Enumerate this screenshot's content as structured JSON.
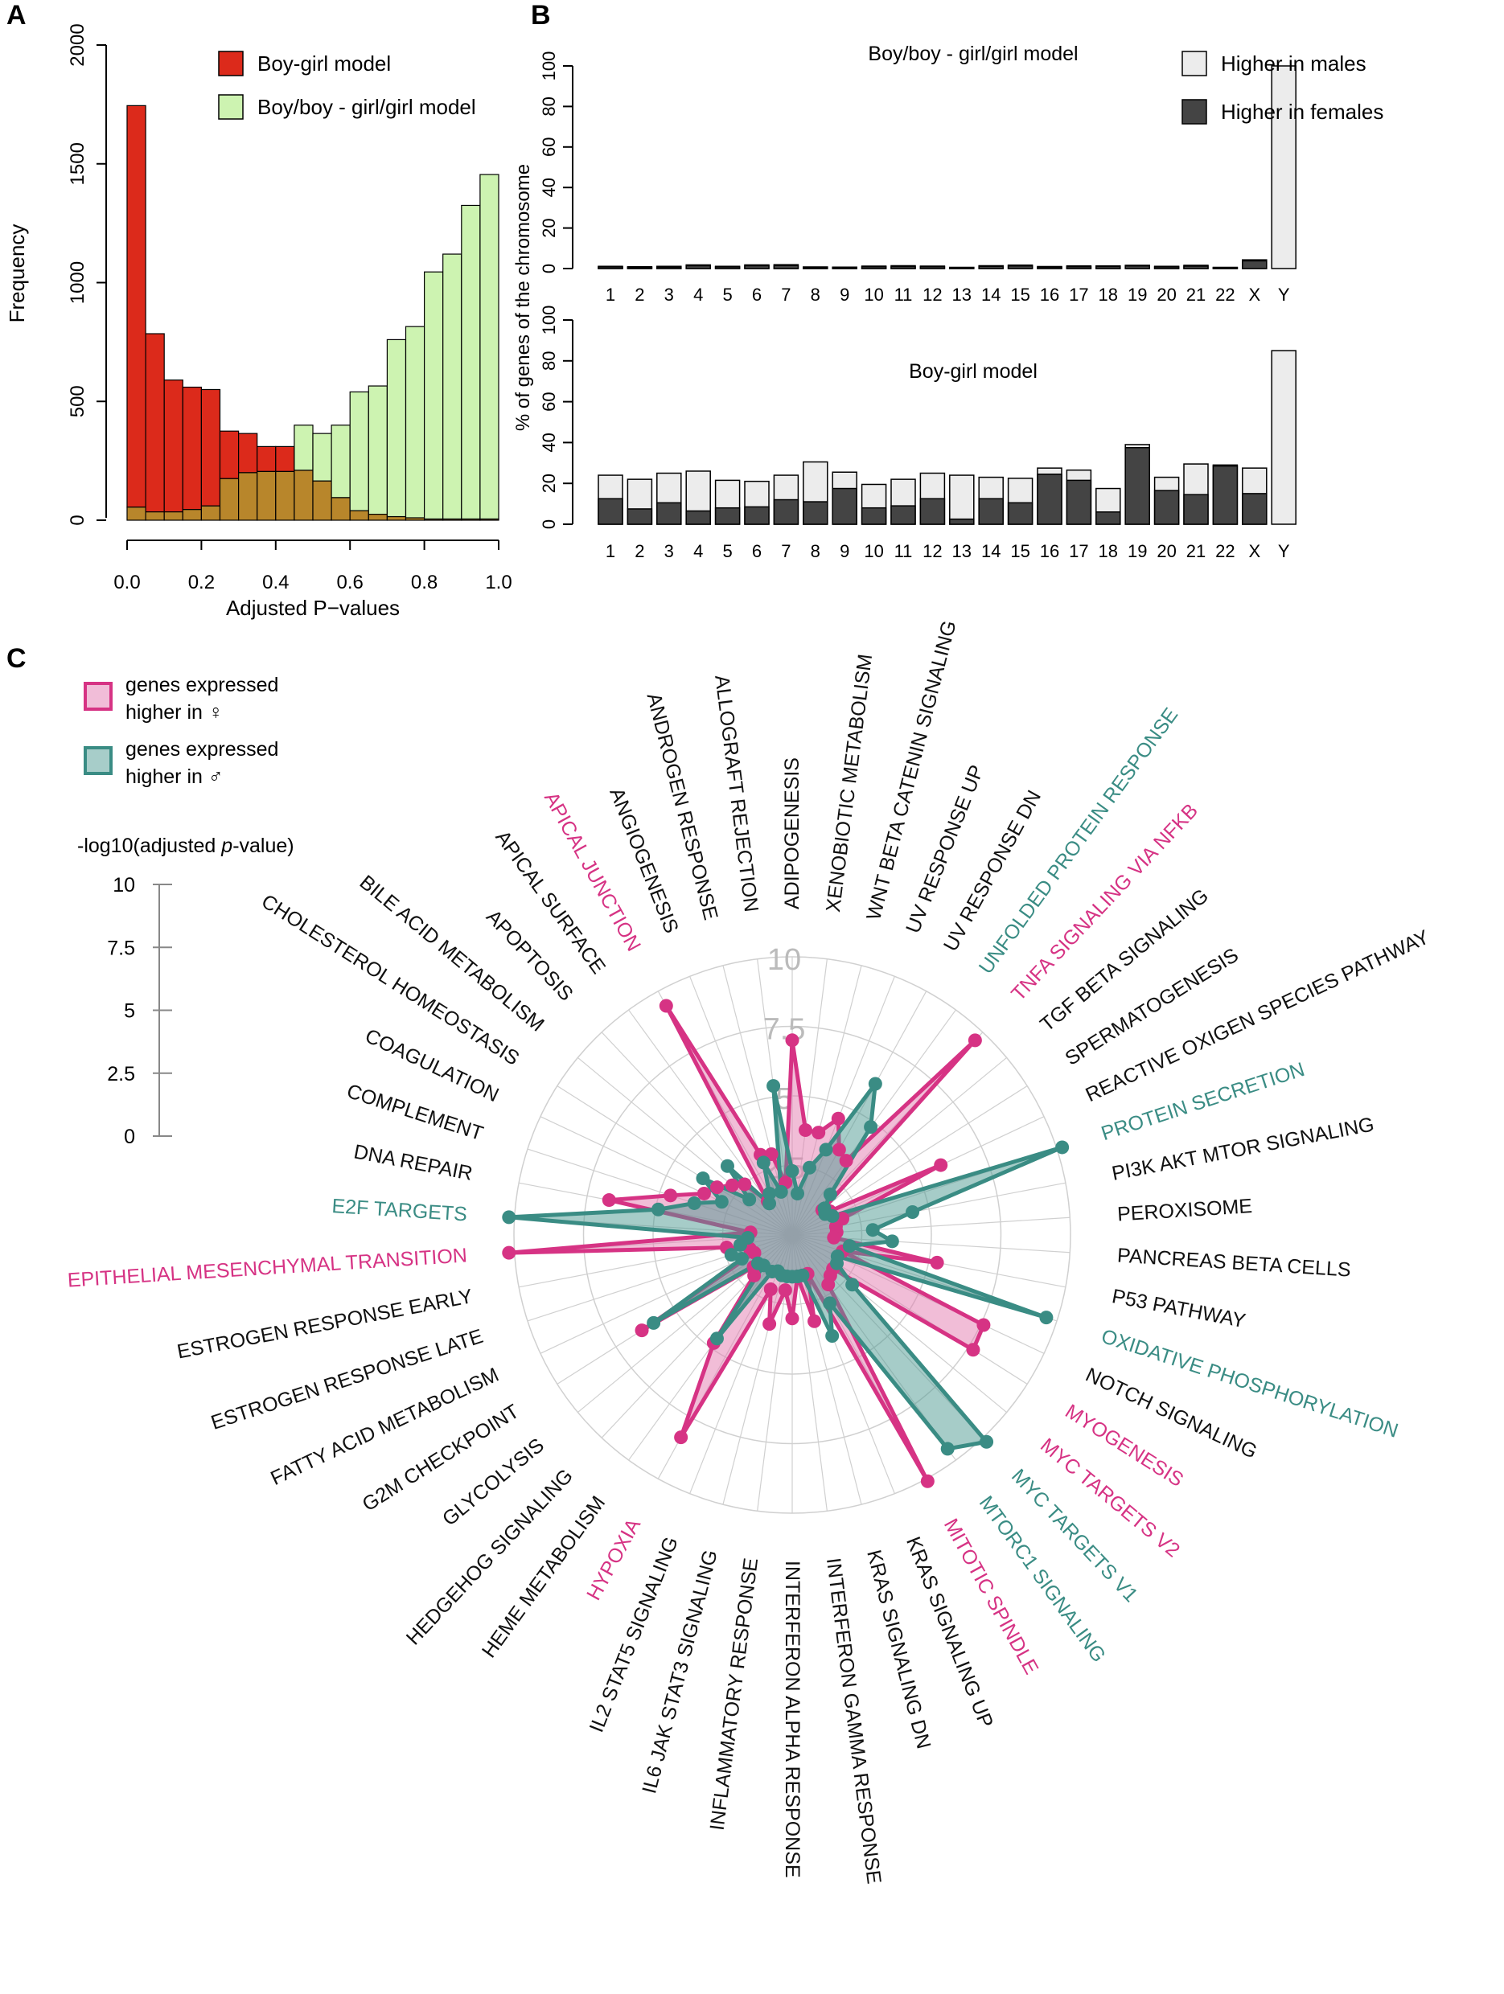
{
  "panels": {
    "a": "A",
    "b": "B",
    "c": "C"
  },
  "colors": {
    "red": "#dc2a1b",
    "green": "#cdf3b1",
    "olive": "#b8862b",
    "male": "#ececec",
    "female": "#444444",
    "pink": "#d63384",
    "teal": "#3a8c84",
    "pink_fill": "#e37bb0",
    "teal_fill": "#4e9a92",
    "grid": "#d0d0d0",
    "radial_tick": "#bbbbbb"
  },
  "chart_data": [
    {
      "type": "bar",
      "id": "hist",
      "xlabel": "Adjusted P−values",
      "ylabel": "Frequency",
      "xlim": [
        0,
        1
      ],
      "ylim": [
        0,
        2000
      ],
      "xticks": [
        "0.0",
        "0.2",
        "0.4",
        "0.6",
        "0.8",
        "1.0"
      ],
      "yticks": [
        "0",
        "500",
        "1000",
        "1500",
        "2000"
      ],
      "bin_width": 0.05,
      "legend_position": "top-right",
      "series": [
        {
          "name": "Boy-girl model",
          "color_key": "red",
          "values": [
            1745,
            785,
            590,
            560,
            550,
            375,
            365,
            310,
            310,
            210,
            165,
            95,
            40,
            25,
            15,
            10,
            5,
            5,
            5,
            5
          ]
        },
        {
          "name": "Boy/boy - girl/girl model",
          "color_key": "green",
          "values": [
            55,
            35,
            35,
            45,
            60,
            175,
            200,
            205,
            205,
            400,
            365,
            400,
            540,
            565,
            760,
            815,
            1045,
            1120,
            1325,
            1455
          ]
        }
      ]
    },
    {
      "type": "bar",
      "id": "chrom_top",
      "title": "Boy/boy - girl/girl model",
      "ylabel": "% of genes of the chromosome",
      "ylim": [
        0,
        100
      ],
      "yticks": [
        "0",
        "20",
        "40",
        "60",
        "80",
        "100"
      ],
      "categories": [
        "1",
        "2",
        "3",
        "4",
        "5",
        "6",
        "7",
        "8",
        "9",
        "10",
        "11",
        "12",
        "13",
        "14",
        "15",
        "16",
        "17",
        "18",
        "19",
        "20",
        "21",
        "22",
        "X",
        "Y"
      ],
      "legend_position": "top-right",
      "series": [
        {
          "name": "Higher in males",
          "color_key": "male",
          "values": [
            0.3,
            0.3,
            0.4,
            0.4,
            0.3,
            0.4,
            0.4,
            0.2,
            0.2,
            0.3,
            0.4,
            0.3,
            0.2,
            0.3,
            0.4,
            0.3,
            0.4,
            0.3,
            0.3,
            0.3,
            0.4,
            0.2,
            0.5,
            100
          ]
        },
        {
          "name": "Higher in females",
          "color_key": "female",
          "values": [
            0.8,
            0.6,
            0.7,
            1.4,
            0.8,
            1.4,
            1.5,
            0.6,
            0.5,
            0.9,
            1.0,
            0.9,
            0.4,
            1.1,
            1.3,
            0.7,
            0.9,
            1.0,
            1.3,
            0.8,
            1.2,
            0.4,
            3.8,
            0
          ]
        }
      ]
    },
    {
      "type": "bar",
      "id": "chrom_bottom",
      "title": "Boy-girl model",
      "ylim": [
        0,
        100
      ],
      "yticks": [
        "0",
        "20",
        "40",
        "60",
        "80",
        "100"
      ],
      "categories": [
        "1",
        "2",
        "3",
        "4",
        "5",
        "6",
        "7",
        "8",
        "9",
        "10",
        "11",
        "12",
        "13",
        "14",
        "15",
        "16",
        "17",
        "18",
        "19",
        "20",
        "21",
        "22",
        "X",
        "Y"
      ],
      "series": [
        {
          "name": "Higher in males",
          "color_key": "male",
          "values": [
            11.5,
            14.5,
            14.5,
            19.5,
            13.5,
            12.5,
            12.0,
            19.5,
            8.0,
            11.5,
            13.0,
            12.5,
            21.5,
            10.5,
            12.0,
            3.0,
            5.0,
            11.5,
            1.5,
            6.5,
            15.0,
            0.5,
            12.5,
            85
          ]
        },
        {
          "name": "Higher in females",
          "color_key": "female",
          "values": [
            12.5,
            7.5,
            10.5,
            6.5,
            8.0,
            8.5,
            12.0,
            11.0,
            17.5,
            8.0,
            9.0,
            12.5,
            2.5,
            12.5,
            10.5,
            24.5,
            21.5,
            6.0,
            37.5,
            16.5,
            14.5,
            28.5,
            15.0,
            0
          ]
        }
      ]
    },
    {
      "type": "radar",
      "id": "radar",
      "rlim": [
        0,
        10
      ],
      "ring_labels": [
        "2.5",
        "5",
        "7.5",
        "10"
      ],
      "scale_title_prefix": "-log10(adjusted ",
      "scale_title_italic": "p",
      "scale_title_suffix": "-value)",
      "scale_ticks": [
        "0",
        "2.5",
        "5",
        "7.5",
        "10"
      ],
      "legend": [
        {
          "line1": "genes expressed",
          "line2": "higher in ♀",
          "color_key": "pink",
          "fill_key": "pink_fill"
        },
        {
          "line1": "genes expressed",
          "line2": "higher in ♂",
          "color_key": "teal",
          "fill_key": "teal_fill"
        }
      ],
      "categories": [
        {
          "name": "ADIPOGENESIS",
          "female": 7.0,
          "male": 2.3,
          "color": "black"
        },
        {
          "name": "XENOBIOTIC METABOLISM",
          "female": 3.8,
          "male": 1.5,
          "color": "black"
        },
        {
          "name": "WNT BETA CATENIN SIGNALING",
          "female": 3.8,
          "male": 2.5,
          "color": "black"
        },
        {
          "name": "UV RESPONSE UP",
          "female": 4.5,
          "male": 3.3,
          "color": "black"
        },
        {
          "name": "UV RESPONSE DN",
          "female": 3.5,
          "male": 6.2,
          "color": "black"
        },
        {
          "name": "UNFOLDED PROTEIN RESPONSE",
          "female": 3.3,
          "male": 4.8,
          "color": "teal"
        },
        {
          "name": "TNFA SIGNALING VIA NFKB",
          "female": 9.6,
          "male": 2.0,
          "color": "pink"
        },
        {
          "name": "TGF BETA SIGNALING",
          "female": 1.4,
          "male": 1.5,
          "color": "black"
        },
        {
          "name": "SPERMATOGENESIS",
          "female": 1.6,
          "male": 1.4,
          "color": "black"
        },
        {
          "name": "REACTIVE OXIGEN SPECIES PATHWAY",
          "female": 5.9,
          "male": 1.6,
          "color": "black"
        },
        {
          "name": "PROTEIN SECRETION",
          "female": 1.9,
          "male": 10.2,
          "color": "teal"
        },
        {
          "name": "PI3K AKT MTOR SIGNALING",
          "female": 1.6,
          "male": 4.4,
          "color": "black"
        },
        {
          "name": "PEROXISOME",
          "female": 1.6,
          "male": 2.9,
          "color": "black"
        },
        {
          "name": "PANCREAS BETA CELLS",
          "female": 1.5,
          "male": 3.6,
          "color": "black"
        },
        {
          "name": "P53 PATHWAY",
          "female": 5.3,
          "male": 2.1,
          "color": "black"
        },
        {
          "name": "OXIDATIVE PHOSPHORYLATION",
          "female": 1.9,
          "male": 9.6,
          "color": "teal"
        },
        {
          "name": "NOTCH SIGNALING",
          "female": 7.6,
          "male": 1.8,
          "color": "black"
        },
        {
          "name": "MYOGENESIS",
          "female": 7.7,
          "male": 1.9,
          "color": "pink"
        },
        {
          "name": "MYC TARGETS V2",
          "female": 1.9,
          "male": 2.8,
          "color": "pink"
        },
        {
          "name": "MYC TARGETS V1",
          "female": 2.0,
          "male": 10.2,
          "color": "teal"
        },
        {
          "name": "MTORC1 SIGNALING",
          "female": 2.2,
          "male": 9.5,
          "color": "teal"
        },
        {
          "name": "MITOTIC SPINDLE",
          "female": 10.1,
          "male": 2.8,
          "color": "pink"
        },
        {
          "name": "KRAS SIGNALING UP",
          "female": 1.5,
          "male": 3.9,
          "color": "black"
        },
        {
          "name": "KRAS SIGNALING DN",
          "female": 3.2,
          "male": 1.5,
          "color": "black"
        },
        {
          "name": "INTERFERON GAMMA RESPONSE",
          "female": 1.5,
          "male": 1.5,
          "color": "black"
        },
        {
          "name": "INTERFERON ALPHA RESPONSE",
          "female": 3.0,
          "male": 1.5,
          "color": "black"
        },
        {
          "name": "INFLAMMATORY RESPONSE",
          "female": 2.0,
          "male": 1.5,
          "color": "black"
        },
        {
          "name": "IL6 JAK STAT3 SIGNALING",
          "female": 3.3,
          "male": 1.5,
          "color": "black"
        },
        {
          "name": "IL2 STAT5 SIGNALING",
          "female": 2.1,
          "male": 1.4,
          "color": "black"
        },
        {
          "name": "HYPOXIA",
          "female": 8.3,
          "male": 1.5,
          "color": "pink"
        },
        {
          "name": "HEME METABOLISM",
          "female": 4.8,
          "male": 4.6,
          "color": "black"
        },
        {
          "name": "HEDGEHOG SIGNALING",
          "female": 2.0,
          "male": 1.5,
          "color": "black"
        },
        {
          "name": "GLYCOLYSIS",
          "female": 1.8,
          "male": 1.6,
          "color": "black"
        },
        {
          "name": "G2M CHECKPOINT",
          "female": 6.4,
          "male": 5.9,
          "color": "black"
        },
        {
          "name": "FATTY ACID METABOLISM",
          "female": 1.5,
          "male": 2.0,
          "color": "black"
        },
        {
          "name": "ESTROGEN RESPONSE LATE",
          "female": 1.6,
          "male": 2.3,
          "color": "black"
        },
        {
          "name": "ESTROGEN RESPONSE EARLY",
          "female": 2.4,
          "male": 1.9,
          "color": "black"
        },
        {
          "name": "EPITHELIAL MESENCHYMAL TRANSITION",
          "female": 10.2,
          "male": 1.6,
          "color": "pink"
        },
        {
          "name": "E2F TARGETS",
          "female": 1.5,
          "male": 10.2,
          "color": "teal"
        },
        {
          "name": "DNA REPAIR",
          "female": 6.7,
          "male": 4.9,
          "color": "black"
        },
        {
          "name": "COMPLEMENT",
          "female": 4.6,
          "male": 3.7,
          "color": "black"
        },
        {
          "name": "COAGULATION",
          "female": 3.5,
          "male": 2.8,
          "color": "black"
        },
        {
          "name": "CHOLESTEROL HOMEOSTASIS",
          "female": 3.2,
          "male": 3.8,
          "color": "black"
        },
        {
          "name": "BILE ACID METABOLISM",
          "female": 2.8,
          "male": 2.0,
          "color": "black"
        },
        {
          "name": "APOPTOSIS",
          "female": 2.5,
          "male": 3.4,
          "color": "black"
        },
        {
          "name": "APICAL SURFACE",
          "female": 1.5,
          "male": 1.4,
          "color": "black"
        },
        {
          "name": "APICAL JUNCTION",
          "female": 9.4,
          "male": 1.7,
          "color": "pink"
        },
        {
          "name": "ANGIOGENESIS",
          "female": 3.1,
          "male": 2.8,
          "color": "black"
        },
        {
          "name": "ANDROGEN RESPONSE",
          "female": 3.0,
          "male": 1.6,
          "color": "black"
        },
        {
          "name": "ALLOGRAFT REJECTION",
          "female": 1.9,
          "male": 5.4,
          "color": "black"
        }
      ]
    }
  ]
}
